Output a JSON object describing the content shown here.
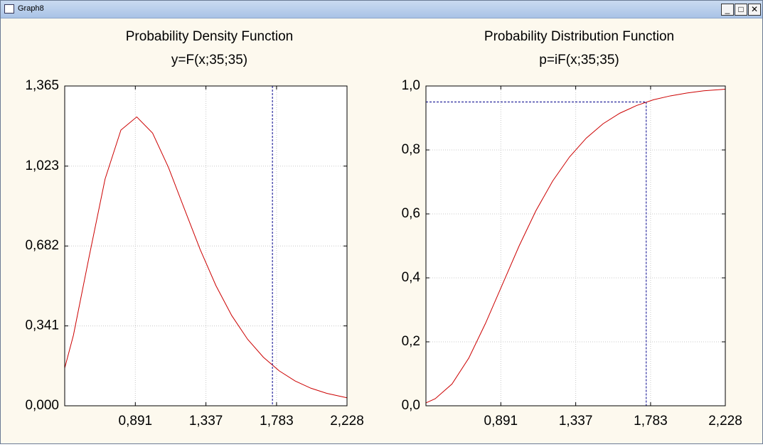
{
  "window_title": "Graph8",
  "chart_data": [
    {
      "type": "line",
      "title": "Probability Density Function",
      "subtitle": "y=F(x;35;35)",
      "x": [
        0.445,
        0.5,
        0.6,
        0.7,
        0.8,
        0.9,
        1.0,
        1.1,
        1.2,
        1.3,
        1.4,
        1.5,
        1.6,
        1.7,
        1.8,
        1.9,
        2.0,
        2.1,
        2.228
      ],
      "values": [
        0.161,
        0.301,
        0.639,
        0.968,
        1.177,
        1.233,
        1.164,
        1.018,
        0.842,
        0.668,
        0.513,
        0.385,
        0.284,
        0.207,
        0.149,
        0.106,
        0.075,
        0.053,
        0.034
      ],
      "color": "#cc0000",
      "xlim": [
        0.445,
        2.228
      ],
      "xticks": [
        {
          "value": 0.891,
          "label": "0,891"
        },
        {
          "value": 1.337,
          "label": "1,337"
        },
        {
          "value": 1.783,
          "label": "1,783"
        },
        {
          "value": 2.228,
          "label": "2,228"
        }
      ],
      "ylim": [
        0,
        1.365
      ],
      "yticks": [
        {
          "value": 0,
          "label": "0,000"
        },
        {
          "value": 0.341,
          "label": "0,341"
        },
        {
          "value": 0.682,
          "label": "0,682"
        },
        {
          "value": 1.023,
          "label": "1,023"
        },
        {
          "value": 1.365,
          "label": "1,365"
        }
      ],
      "grid": true,
      "reference_x": 1.757
    },
    {
      "type": "line",
      "title": "Probability Distribution Function",
      "subtitle": "p=iF(x;35;35)",
      "x": [
        0.445,
        0.5,
        0.6,
        0.7,
        0.8,
        0.9,
        1.0,
        1.1,
        1.2,
        1.3,
        1.4,
        1.5,
        1.6,
        1.7,
        1.8,
        1.9,
        2.0,
        2.1,
        2.228
      ],
      "values": [
        0.009,
        0.022,
        0.068,
        0.149,
        0.258,
        0.379,
        0.5,
        0.61,
        0.703,
        0.778,
        0.837,
        0.882,
        0.915,
        0.939,
        0.957,
        0.969,
        0.978,
        0.985,
        0.99
      ],
      "color": "#cc0000",
      "xlim": [
        0.445,
        2.228
      ],
      "xticks": [
        {
          "value": 0.891,
          "label": "0,891"
        },
        {
          "value": 1.337,
          "label": "1,337"
        },
        {
          "value": 1.783,
          "label": "1,783"
        },
        {
          "value": 2.228,
          "label": "2,228"
        }
      ],
      "ylim": [
        0,
        1
      ],
      "yticks": [
        {
          "value": 0,
          "label": "0,0"
        },
        {
          "value": 0.2,
          "label": "0,2"
        },
        {
          "value": 0.4,
          "label": "0,4"
        },
        {
          "value": 0.6,
          "label": "0,6"
        },
        {
          "value": 0.8,
          "label": "0,8"
        },
        {
          "value": 1,
          "label": "1,0"
        }
      ],
      "grid": true,
      "reference_x": 1.757,
      "reference_y": 0.95
    }
  ]
}
